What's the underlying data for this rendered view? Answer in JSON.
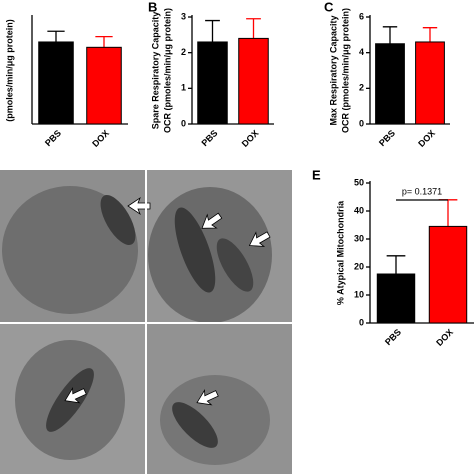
{
  "chart_data": [
    {
      "type": "bar",
      "ylabel": [
        "(pmoles/min/μg protein)"
      ],
      "categories": [
        "PBS",
        "DOX"
      ],
      "values": [
        2.3,
        2.15
      ],
      "errors": [
        0.3,
        0.3
      ],
      "colors": [
        "#000000",
        "#ff0000"
      ],
      "ylim": [
        0,
        3
      ],
      "yticks": []
    },
    {
      "type": "bar",
      "label": "B",
      "ylabel": [
        "Spare Respiratory Capacity",
        "OCR (pmoles/min/μg protein)"
      ],
      "categories": [
        "PBS",
        "DOX"
      ],
      "values": [
        2.3,
        2.4
      ],
      "errors": [
        0.6,
        0.55
      ],
      "colors": [
        "#000000",
        "#ff0000"
      ],
      "ylim": [
        0,
        3
      ],
      "yticks": [
        0,
        1,
        2,
        3
      ]
    },
    {
      "type": "bar",
      "label": "C",
      "ylabel": [
        "Max Respiratory Capacity",
        "OCR (pmoles/min/μg protein)"
      ],
      "categories": [
        "PBS",
        "DOX"
      ],
      "values": [
        4.5,
        4.6
      ],
      "errors": [
        0.95,
        0.8
      ],
      "colors": [
        "#000000",
        "#ff0000"
      ],
      "ylim": [
        0,
        6
      ],
      "yticks": [
        0,
        2,
        4,
        6
      ]
    },
    {
      "type": "bar",
      "label": "E",
      "ylabel": [
        "% Atypical Mitochondria"
      ],
      "categories": [
        "PBS",
        "DOX"
      ],
      "values": [
        17.5,
        34.5
      ],
      "errors": [
        6.5,
        9.5
      ],
      "colors": [
        "#000000",
        "#ff0000"
      ],
      "ylim": [
        0,
        50
      ],
      "yticks": [
        0,
        10,
        20,
        30,
        40,
        50
      ],
      "annotation": "p= 0.1371"
    }
  ]
}
